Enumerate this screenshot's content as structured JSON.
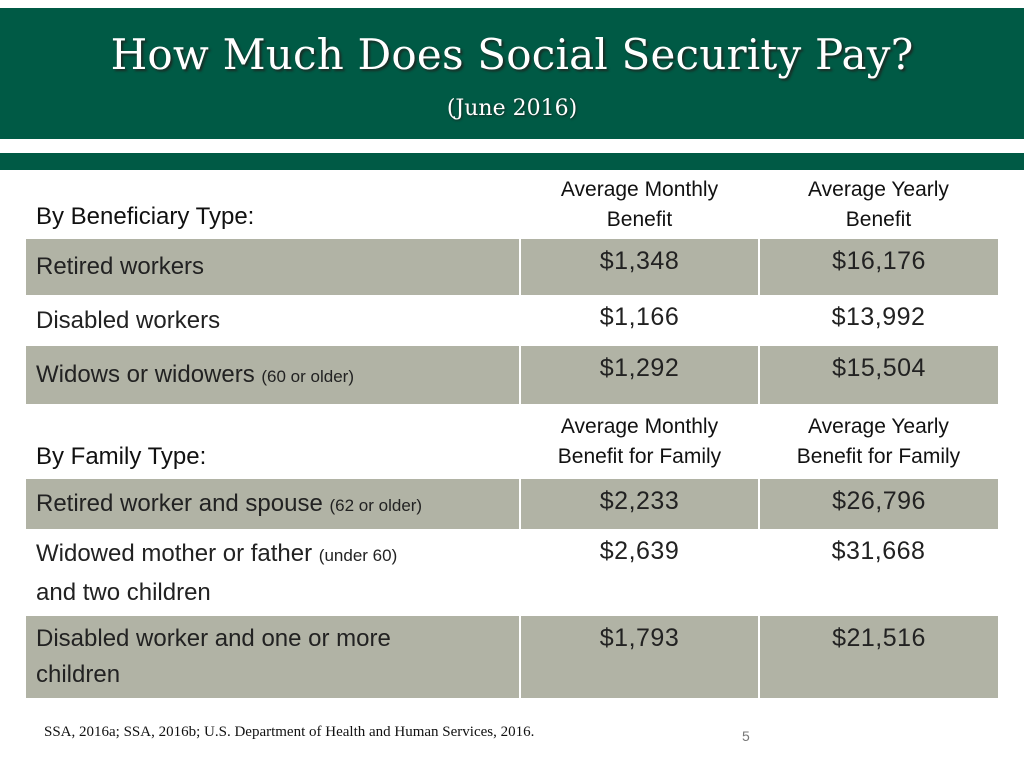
{
  "slide": {
    "title": "How Much Does Social Security Pay?",
    "subtitle": "(June 2016)",
    "footer": "SSA, 2016a; SSA, 2016b; U.S. Department of Health and Human Services, 2016.",
    "page_number": "5"
  },
  "beneficiary_section": {
    "heading": "By Beneficiary Type:",
    "col_monthly_line1": "Average Monthly",
    "col_monthly_line2": "Benefit",
    "col_yearly_line1": "Average Yearly",
    "col_yearly_line2": "Benefit",
    "rows": [
      {
        "label": "Retired workers",
        "qualifier": "",
        "monthly": "$1,348",
        "yearly": "$16,176"
      },
      {
        "label": "Disabled workers",
        "qualifier": "",
        "monthly": "$1,166",
        "yearly": "$13,992"
      },
      {
        "label": "Widows or widowers",
        "qualifier": "(60 or older)",
        "monthly": "$1,292",
        "yearly": "$15,504"
      }
    ]
  },
  "family_section": {
    "heading": "By Family Type:",
    "col_monthly_line1": "Average Monthly",
    "col_monthly_line2": "Benefit for Family",
    "col_yearly_line1": "Average Yearly",
    "col_yearly_line2": "Benefit for Family",
    "rows": [
      {
        "label": "Retired worker and spouse",
        "qualifier": "(62 or older)",
        "label_cont": "",
        "monthly": "$2,233",
        "yearly": "$26,796"
      },
      {
        "label": "Widowed mother or father",
        "qualifier": "(under 60)",
        "label_cont": "and two children",
        "monthly": "$2,639",
        "yearly": "$31,668"
      },
      {
        "label": "Disabled worker and one or more children",
        "qualifier": "",
        "label_cont": "",
        "monthly": "$1,793",
        "yearly": "$21,516"
      }
    ]
  }
}
